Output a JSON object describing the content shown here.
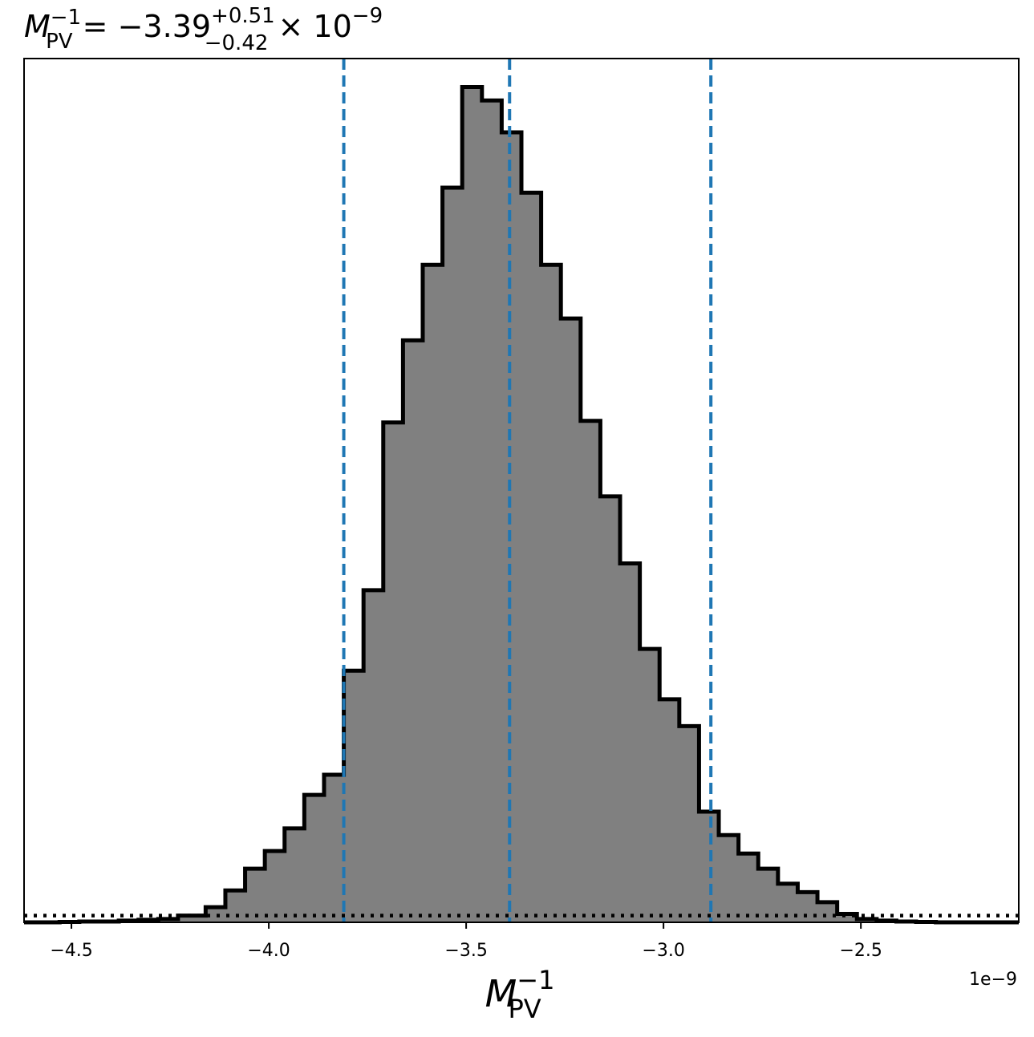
{
  "chart_data": {
    "type": "histogram",
    "title": {
      "base": "M",
      "base_sup": "−1",
      "base_sub": "PV",
      "equals": "= −3.39",
      "err_plus": "+0.51",
      "err_minus": "−0.42",
      "times": "× 10",
      "exp": "−9"
    },
    "xlabel": {
      "base": "M",
      "sup": "−1",
      "sub": "PV"
    },
    "x_offset_label": "1e−9",
    "x_scale": 1e-09,
    "xlim": [
      -4.62,
      -2.1
    ],
    "ylim": [
      0,
      1.0
    ],
    "x_ticks": [
      -4.5,
      -4.0,
      -3.5,
      -3.0,
      -2.5
    ],
    "x_tick_labels": [
      "−4.5",
      "−4.0",
      "−3.5",
      "−3.0",
      "−2.5"
    ],
    "bin_edges": [
      -4.62,
      -4.58,
      -4.53,
      -4.48,
      -4.43,
      -4.38,
      -4.33,
      -4.28,
      -4.23,
      -4.16,
      -4.11,
      -4.06,
      -4.01,
      -3.96,
      -3.91,
      -3.86,
      -3.81,
      -3.76,
      -3.71,
      -3.66,
      -3.61,
      -3.56,
      -3.51,
      -3.46,
      -3.41,
      -3.36,
      -3.31,
      -3.26,
      -3.21,
      -3.16,
      -3.11,
      -3.06,
      -3.01,
      -2.96,
      -2.91,
      -2.86,
      -2.81,
      -2.76,
      -2.71,
      -2.66,
      -2.61,
      -2.56,
      -2.51,
      -2.46,
      -2.41,
      -2.36,
      -2.31,
      -2.26
    ],
    "counts": [
      0.0,
      0.0,
      0.0005,
      0.001,
      0.001,
      0.002,
      0.003,
      0.004,
      0.008,
      0.018,
      0.038,
      0.064,
      0.085,
      0.112,
      0.152,
      0.176,
      0.3,
      0.396,
      0.596,
      0.694,
      0.784,
      0.876,
      0.996,
      0.98,
      0.942,
      0.87,
      0.784,
      0.72,
      0.598,
      0.508,
      0.428,
      0.326,
      0.266,
      0.234,
      0.132,
      0.104,
      0.082,
      0.064,
      0.046,
      0.036,
      0.024,
      0.01,
      0.004,
      0.002,
      0.001,
      0.0005,
      0.0
    ],
    "quantile_lines": [
      -3.81,
      -3.39,
      -2.88
    ],
    "quantile_color": "#1f77b4",
    "hist_fill": "#808080",
    "hist_edge": "#000000",
    "prior_level": 0.008
  }
}
